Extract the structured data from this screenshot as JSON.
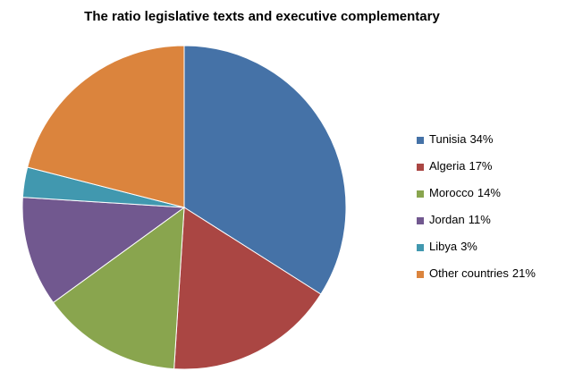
{
  "chart_data": {
    "type": "pie",
    "title": "The ratio legislative texts and executive complementary",
    "categories": [
      "Tunisia",
      "Algeria",
      "Morocco",
      "Jordan",
      "Libya",
      "Other countries"
    ],
    "values": [
      34,
      17,
      14,
      11,
      3,
      21
    ],
    "value_labels": [
      "34%",
      "17%",
      "14%",
      "11%",
      "3%",
      "21%"
    ],
    "colors": [
      "#4572a7",
      "#aa4643",
      "#89a54e",
      "#71588f",
      "#4198af",
      "#db843d"
    ],
    "legend": "right"
  }
}
